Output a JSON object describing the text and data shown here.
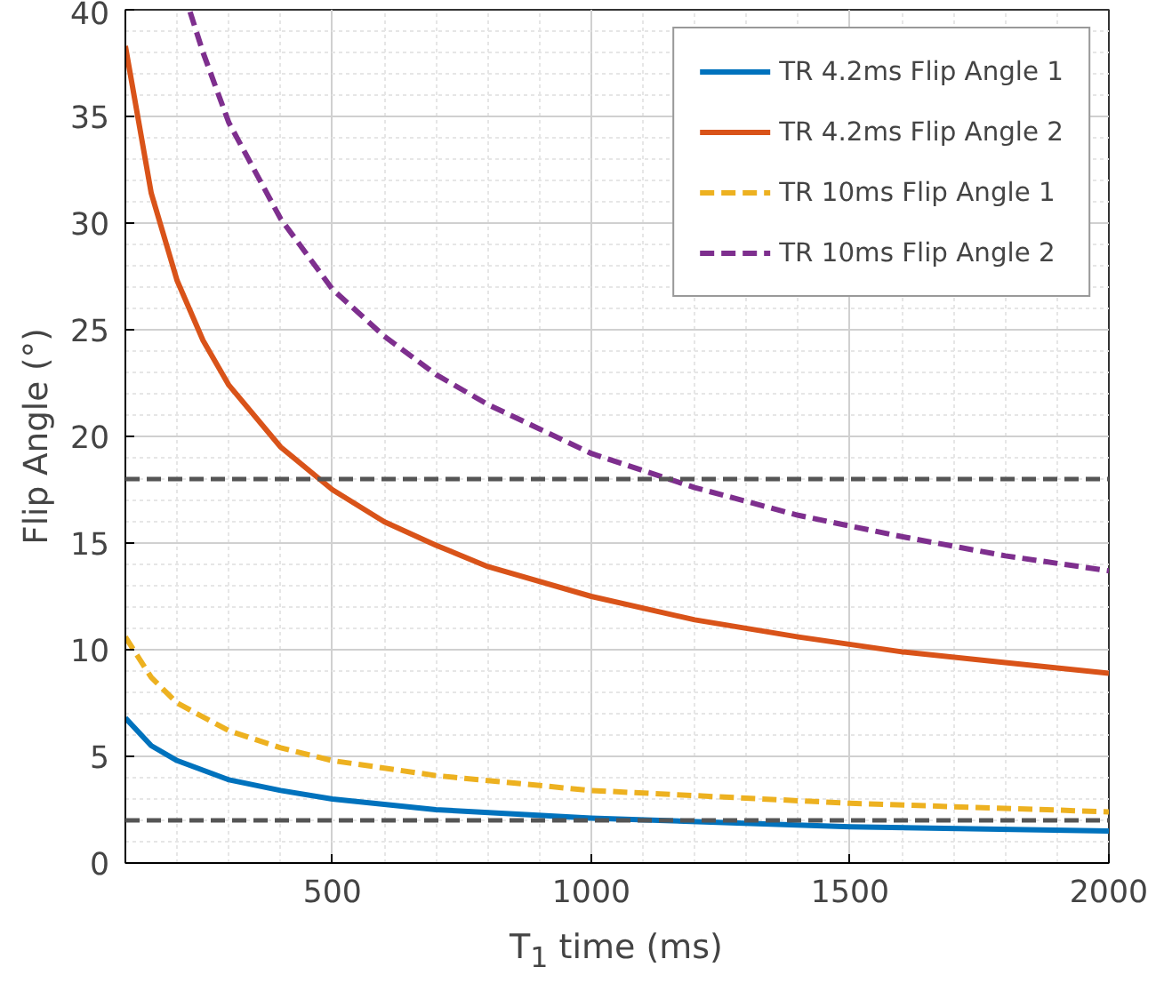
{
  "chart_data": {
    "type": "line",
    "xlabel": "T$_{1}$ time (ms)",
    "ylabel": "Flip Angle (°)",
    "xlim": [
      100,
      2000
    ],
    "ylim": [
      0,
      40
    ],
    "xticks": [
      500,
      1000,
      1500,
      2000
    ],
    "yticks": [
      0,
      5,
      10,
      15,
      20,
      25,
      30,
      35,
      40
    ],
    "grid": true,
    "legend": "top right",
    "series": [
      {
        "name": "TR 4.2ms Flip Angle 1",
        "color": "#0072bd",
        "line_style": "solid",
        "x": [
          100,
          150,
          200,
          300,
          400,
          500,
          700,
          1000,
          1500,
          2000
        ],
        "values": [
          6.8,
          5.5,
          4.8,
          3.9,
          3.4,
          3.0,
          2.5,
          2.1,
          1.7,
          1.5
        ]
      },
      {
        "name": "TR 4.2ms Flip Angle 2",
        "color": "#d95319",
        "line_style": "solid",
        "x": [
          100,
          150,
          200,
          250,
          300,
          400,
          500,
          600,
          700,
          800,
          1000,
          1200,
          1400,
          1600,
          1800,
          2000
        ],
        "values": [
          38.3,
          31.4,
          27.3,
          24.5,
          22.4,
          19.5,
          17.5,
          16.0,
          14.9,
          13.9,
          12.5,
          11.4,
          10.6,
          9.9,
          9.4,
          8.9
        ]
      },
      {
        "name": "TR 10ms Flip Angle 1",
        "color": "#edb120",
        "line_style": "dashed",
        "x": [
          100,
          150,
          200,
          300,
          400,
          500,
          700,
          1000,
          1500,
          2000
        ],
        "values": [
          10.6,
          8.7,
          7.5,
          6.2,
          5.4,
          4.8,
          4.1,
          3.4,
          2.8,
          2.4
        ]
      },
      {
        "name": "TR 10ms Flip Angle 2",
        "color": "#7e2f8e",
        "line_style": "dashed",
        "x": [
          225,
          250,
          300,
          400,
          500,
          600,
          700,
          800,
          1000,
          1200,
          1400,
          1600,
          1800,
          2000
        ],
        "values": [
          39.9,
          38.0,
          34.7,
          30.2,
          26.9,
          24.7,
          22.9,
          21.5,
          19.2,
          17.6,
          16.3,
          15.3,
          14.4,
          13.7
        ]
      }
    ],
    "ref_lines": [
      {
        "axis": "y",
        "value": 18,
        "color": "#555555",
        "line_style": "dashed"
      },
      {
        "axis": "y",
        "value": 2,
        "color": "#555555",
        "line_style": "dashed"
      }
    ]
  }
}
